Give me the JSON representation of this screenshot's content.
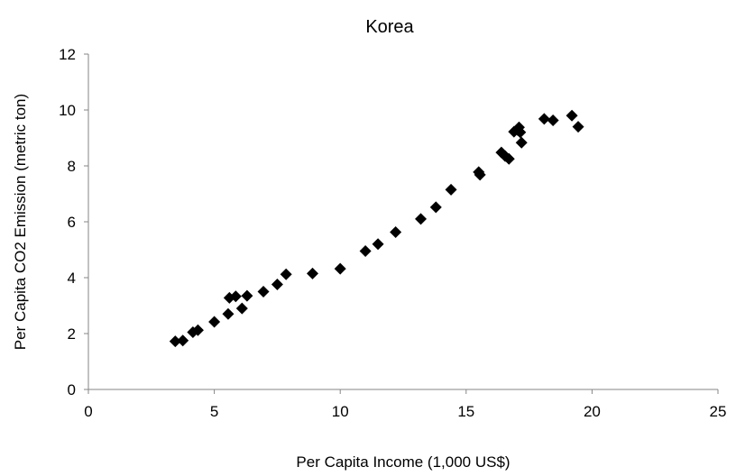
{
  "chart_data": {
    "type": "scatter",
    "title": "Korea",
    "xlabel": "Per Capita Income (1,000 US$)",
    "ylabel": "Per Capita CO2 Emission (metric ton)",
    "xlim": [
      0,
      25
    ],
    "ylim": [
      0,
      12
    ],
    "xticks": [
      0,
      5,
      10,
      15,
      20,
      25
    ],
    "yticks": [
      0,
      2,
      4,
      6,
      8,
      10,
      12
    ],
    "grid": false,
    "marker": "diamond",
    "marker_color": "#000000",
    "series": [
      {
        "points": [
          [
            3.45,
            1.72
          ],
          [
            3.75,
            1.75
          ],
          [
            4.15,
            2.05
          ],
          [
            4.35,
            2.12
          ],
          [
            5.0,
            2.42
          ],
          [
            5.55,
            2.7
          ],
          [
            5.6,
            3.28
          ],
          [
            5.85,
            3.33
          ],
          [
            6.1,
            2.9
          ],
          [
            6.3,
            3.35
          ],
          [
            6.95,
            3.5
          ],
          [
            7.5,
            3.76
          ],
          [
            7.85,
            4.12
          ],
          [
            8.9,
            4.15
          ],
          [
            10.0,
            4.32
          ],
          [
            11.0,
            4.95
          ],
          [
            11.5,
            5.2
          ],
          [
            12.2,
            5.63
          ],
          [
            13.2,
            6.1
          ],
          [
            13.8,
            6.52
          ],
          [
            14.4,
            7.15
          ],
          [
            15.5,
            7.78
          ],
          [
            15.55,
            7.68
          ],
          [
            16.4,
            8.48
          ],
          [
            16.55,
            8.35
          ],
          [
            16.7,
            8.25
          ],
          [
            16.9,
            9.22
          ],
          [
            17.05,
            9.28
          ],
          [
            17.1,
            9.38
          ],
          [
            17.15,
            9.2
          ],
          [
            17.2,
            8.83
          ],
          [
            18.1,
            9.68
          ],
          [
            18.45,
            9.63
          ],
          [
            19.2,
            9.8
          ],
          [
            19.45,
            9.4
          ]
        ]
      }
    ]
  }
}
